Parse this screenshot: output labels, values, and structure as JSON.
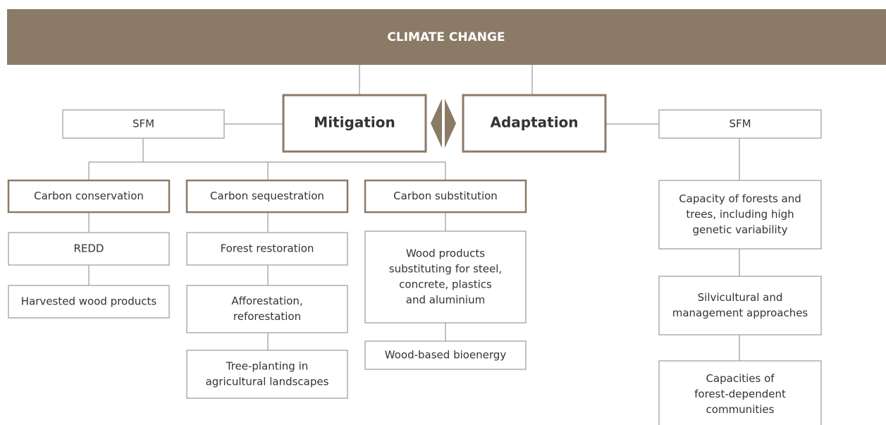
{
  "header": {
    "title": "CLIMATE CHANGE"
  },
  "nodes": [
    {
      "label": [
        "Mitigation"
      ]
    },
    {
      "label": [
        "Adaptation"
      ]
    },
    {
      "label": [
        "SFM"
      ]
    },
    {
      "label": [
        "SFM"
      ]
    },
    {
      "label": [
        "Carbon conservation"
      ]
    },
    {
      "label": [
        "Carbon sequestration"
      ]
    },
    {
      "label": [
        "Carbon substitution"
      ]
    },
    {
      "label": [
        "REDD"
      ]
    },
    {
      "label": [
        "Harvested wood products"
      ]
    },
    {
      "label": [
        "Forest restoration"
      ]
    },
    {
      "label": [
        "Afforestation,",
        "reforestation"
      ]
    },
    {
      "label": [
        "Tree-planting in",
        "agricultural landscapes"
      ]
    },
    {
      "label": [
        "Wood products",
        "substituting for steel,",
        "concrete, plastics",
        "and aluminium"
      ]
    },
    {
      "label": [
        "Wood-based bioenergy"
      ]
    },
    {
      "label": [
        "Capacity of forests and",
        "trees, including high",
        "genetic variability"
      ]
    },
    {
      "label": [
        "Silvicultural and",
        "management approaches"
      ]
    },
    {
      "label": [
        "Capacities of",
        "forest-dependent",
        "communities"
      ]
    }
  ]
}
